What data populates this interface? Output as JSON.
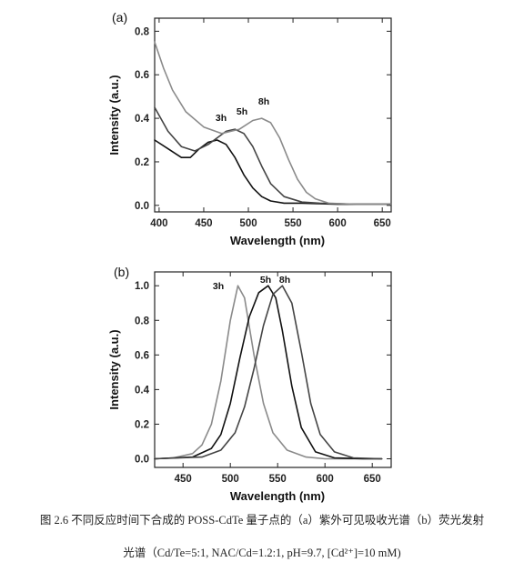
{
  "chart_data": [
    {
      "panel": "(a)",
      "type": "line",
      "xlabel": "Wavelength (nm)",
      "ylabel": "Intensity (a.u.)",
      "xlim": [
        395,
        660
      ],
      "ylim": [
        -0.03,
        0.86
      ],
      "xticks": [
        400,
        450,
        500,
        550,
        600,
        650
      ],
      "yticks": [
        0.0,
        0.2,
        0.4,
        0.6,
        0.8
      ],
      "series": [
        {
          "name": "3h",
          "color": "#111111",
          "x": [
            395,
            410,
            425,
            435,
            445,
            455,
            465,
            475,
            485,
            495,
            505,
            515,
            525,
            540,
            560,
            600,
            660
          ],
          "y": [
            0.3,
            0.26,
            0.22,
            0.22,
            0.26,
            0.29,
            0.3,
            0.28,
            0.22,
            0.14,
            0.08,
            0.04,
            0.02,
            0.01,
            0.01,
            0.005,
            0.005
          ]
        },
        {
          "name": "5h",
          "color": "#444444",
          "x": [
            395,
            410,
            425,
            440,
            455,
            465,
            475,
            485,
            495,
            505,
            515,
            525,
            540,
            560,
            580,
            620,
            660
          ],
          "y": [
            0.45,
            0.34,
            0.27,
            0.25,
            0.28,
            0.31,
            0.34,
            0.35,
            0.33,
            0.27,
            0.18,
            0.1,
            0.04,
            0.015,
            0.01,
            0.005,
            0.005
          ]
        },
        {
          "name": "8h",
          "color": "#8a8a8a",
          "x": [
            395,
            405,
            415,
            430,
            450,
            470,
            490,
            505,
            515,
            525,
            535,
            545,
            555,
            565,
            575,
            590,
            620,
            660
          ],
          "y": [
            0.75,
            0.63,
            0.53,
            0.43,
            0.36,
            0.33,
            0.35,
            0.39,
            0.4,
            0.38,
            0.31,
            0.21,
            0.12,
            0.06,
            0.03,
            0.01,
            0.005,
            0.005
          ]
        }
      ]
    },
    {
      "panel": "(b)",
      "type": "line",
      "xlabel": "Wavelength (nm)",
      "ylabel": "Intensity (a.u.)",
      "xlim": [
        420,
        670
      ],
      "ylim": [
        -0.05,
        1.08
      ],
      "xticks": [
        450,
        500,
        550,
        600,
        650
      ],
      "yticks": [
        0.0,
        0.2,
        0.4,
        0.6,
        0.8,
        1.0
      ],
      "series": [
        {
          "name": "3h",
          "color": "#8a8a8a",
          "x": [
            420,
            440,
            460,
            470,
            480,
            490,
            500,
            508,
            515,
            525,
            535,
            545,
            560,
            580,
            600,
            630,
            660
          ],
          "y": [
            0.0,
            0.005,
            0.03,
            0.08,
            0.2,
            0.45,
            0.8,
            1.0,
            0.93,
            0.6,
            0.32,
            0.15,
            0.05,
            0.01,
            0.0,
            0.0,
            0.0
          ]
        },
        {
          "name": "5h",
          "color": "#111111",
          "x": [
            420,
            460,
            480,
            490,
            500,
            510,
            520,
            530,
            540,
            548,
            555,
            565,
            575,
            590,
            610,
            640,
            660
          ],
          "y": [
            0.0,
            0.01,
            0.06,
            0.14,
            0.32,
            0.58,
            0.82,
            0.96,
            1.0,
            0.93,
            0.74,
            0.42,
            0.18,
            0.04,
            0.005,
            0.0,
            0.0
          ]
        },
        {
          "name": "8h",
          "color": "#444444",
          "x": [
            420,
            470,
            490,
            505,
            515,
            525,
            535,
            545,
            555,
            565,
            575,
            585,
            595,
            610,
            630,
            660
          ],
          "y": [
            0.0,
            0.01,
            0.05,
            0.15,
            0.3,
            0.52,
            0.77,
            0.95,
            1.0,
            0.9,
            0.62,
            0.32,
            0.14,
            0.04,
            0.005,
            0.0
          ]
        }
      ]
    }
  ],
  "caption": {
    "line1": "图 2.6 不同反应时间下合成的 POSS-CdTe 量子点的（a）紫外可见吸收光谱（b）荧光发射",
    "line2": "光谱（Cd/Te=5:1, NAC/Cd=1.2:1, pH=9.7, [Cd²⁺]=10 mM)"
  }
}
